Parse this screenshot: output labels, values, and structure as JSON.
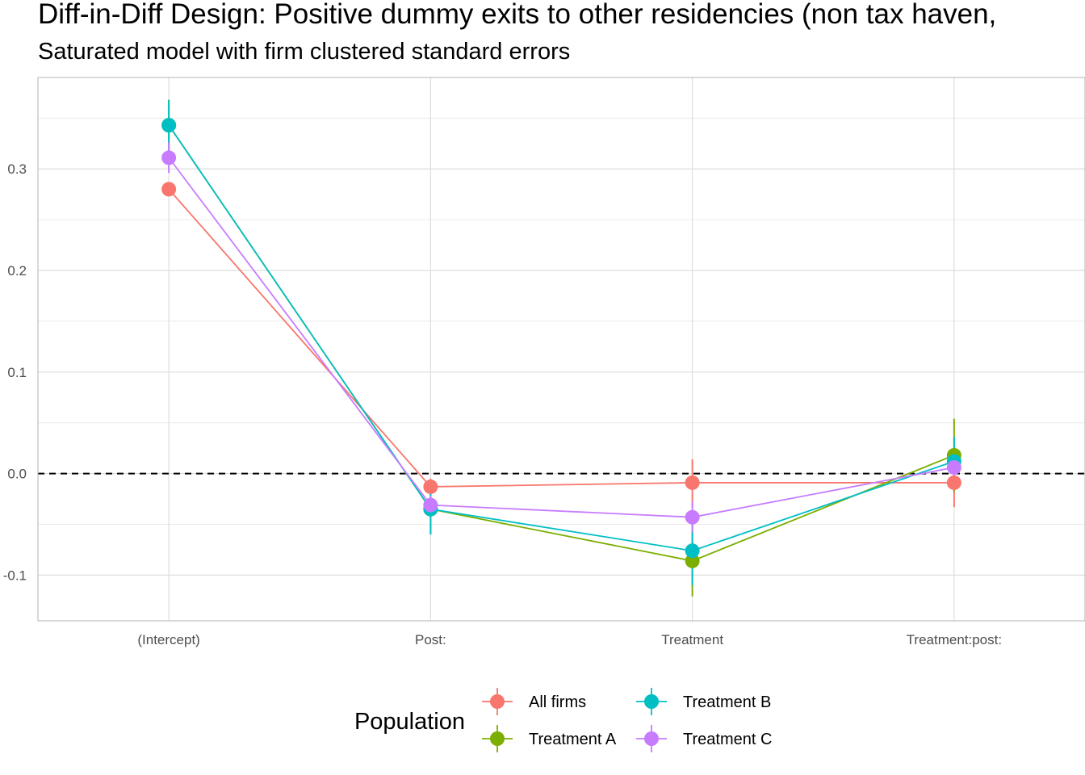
{
  "chart_data": {
    "type": "line",
    "title": "Diff-in-Diff Design: Positive dummy exits to other residencies (non tax haven,",
    "subtitle": "Saturated model with firm clustered standard errors",
    "xlabel": "",
    "ylabel": "",
    "categories": [
      "(Intercept)",
      "Post:",
      "Treatment",
      "Treatment:post:"
    ],
    "ylim": [
      -0.145,
      0.39
    ],
    "yticks": [
      -0.1,
      0.0,
      0.1,
      0.2,
      0.3
    ],
    "ytick_labels": [
      "-0.1",
      "0.0",
      "0.1",
      "0.2",
      "0.3"
    ],
    "grid": true,
    "reference_line": {
      "y": 0.0,
      "style": "dashed",
      "color": "#000000"
    },
    "legend": {
      "title": "Population",
      "position": "bottom"
    },
    "series": [
      {
        "name": "All firms",
        "color": "#F8766D",
        "values": [
          0.28,
          -0.013,
          -0.009,
          -0.009
        ],
        "lower": [
          0.274,
          -0.021,
          -0.033,
          -0.033
        ],
        "upper": [
          0.287,
          -0.005,
          0.014,
          0.015
        ]
      },
      {
        "name": "Treatment A",
        "color": "#7CAE00",
        "values": [
          0.343,
          -0.035,
          -0.086,
          0.018
        ],
        "lower": [
          0.318,
          -0.06,
          -0.121,
          -0.018
        ],
        "upper": [
          0.368,
          -0.01,
          -0.051,
          0.054
        ]
      },
      {
        "name": "Treatment B",
        "color": "#00BFC4",
        "values": [
          0.343,
          -0.035,
          -0.076,
          0.012
        ],
        "lower": [
          0.318,
          -0.06,
          -0.11,
          -0.012
        ],
        "upper": [
          0.368,
          -0.01,
          -0.042,
          0.036
        ]
      },
      {
        "name": "Treatment C",
        "color": "#C77CFF",
        "values": [
          0.311,
          -0.031,
          -0.043,
          0.006
        ],
        "lower": [
          0.296,
          -0.04,
          -0.058,
          -0.004
        ],
        "upper": [
          0.326,
          -0.022,
          -0.028,
          0.016
        ]
      }
    ]
  }
}
